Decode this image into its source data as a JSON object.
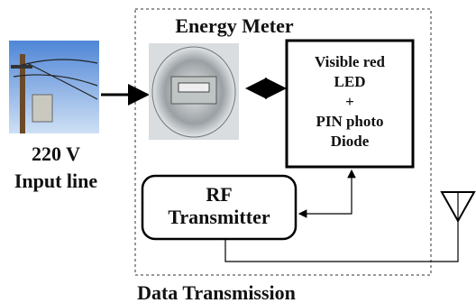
{
  "title": "Energy Meter",
  "input": {
    "voltage": "220 V",
    "label": "Input line"
  },
  "sensor": {
    "lines": [
      "Visible red",
      "LED",
      "+",
      "PIN photo",
      "Diode"
    ]
  },
  "transmitter": {
    "lines": [
      "RF",
      "Transmitter"
    ]
  },
  "footer": "Data Transmission"
}
